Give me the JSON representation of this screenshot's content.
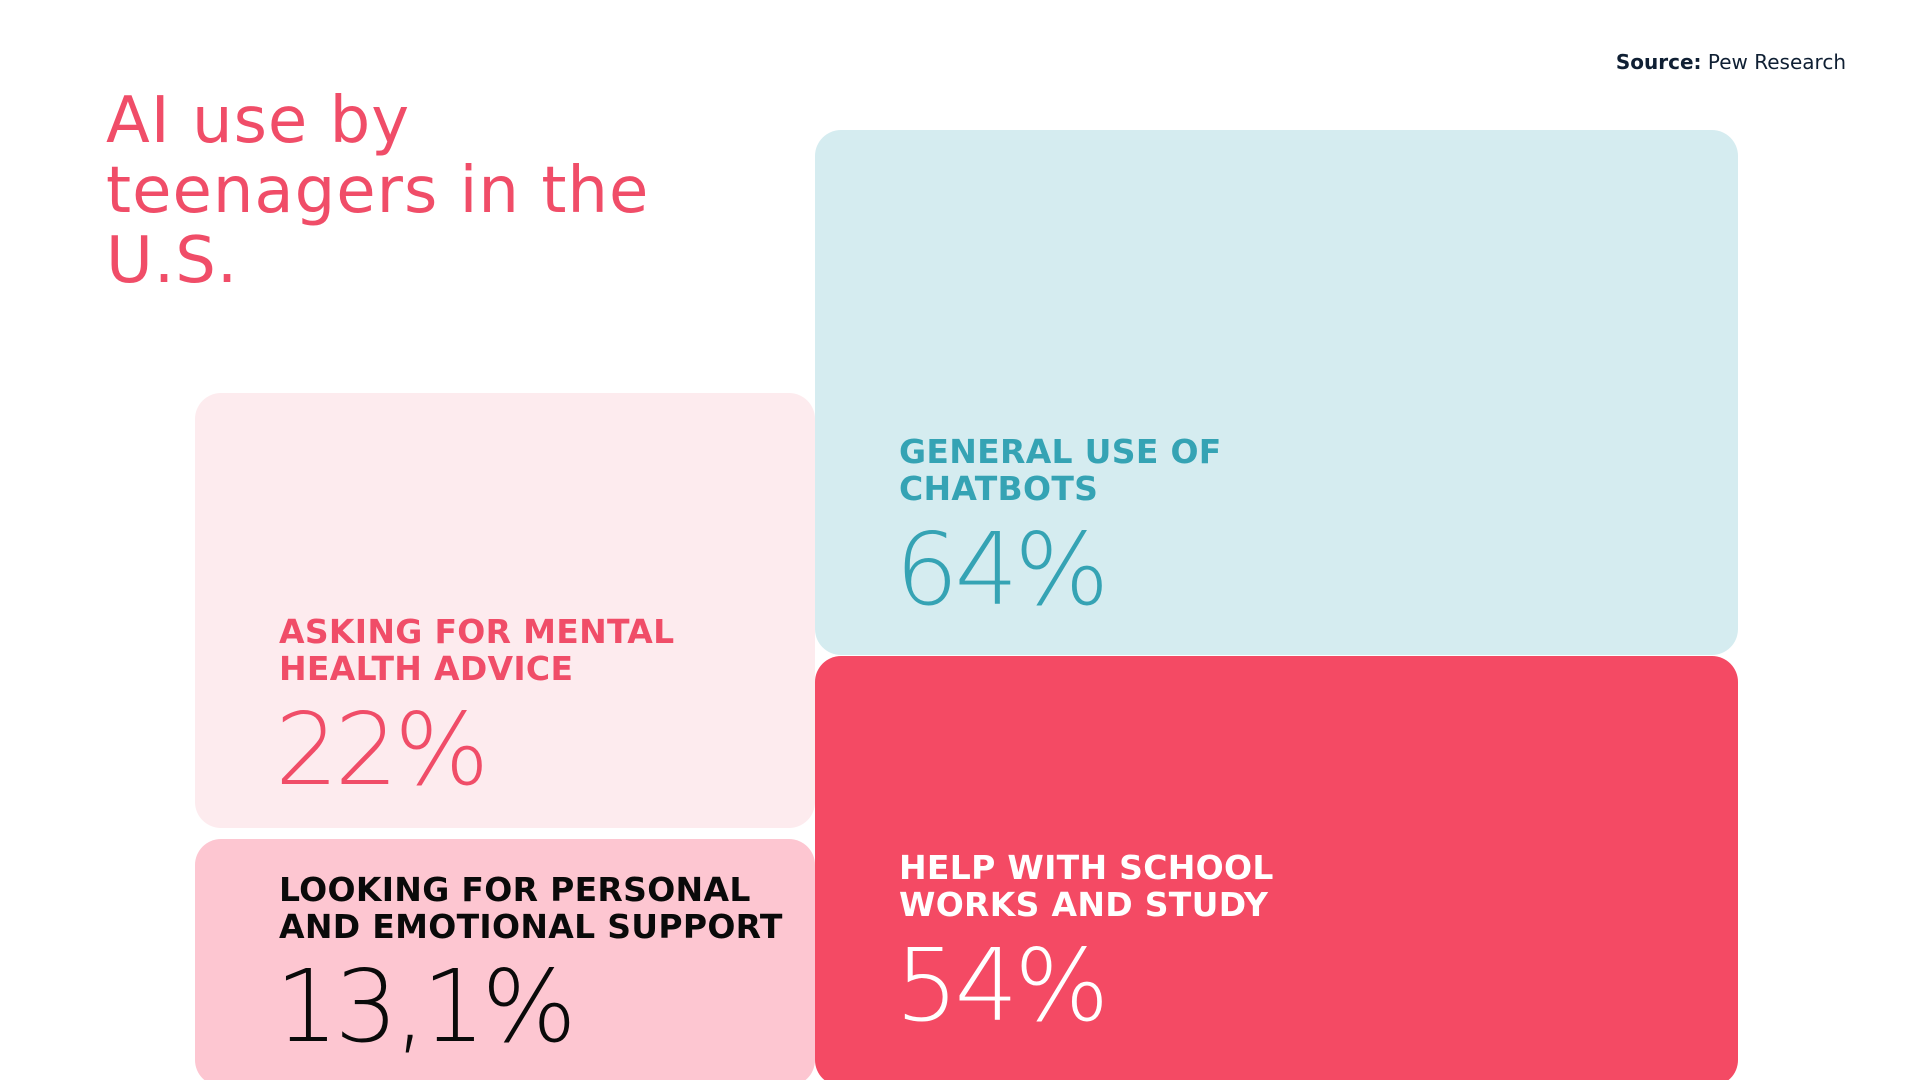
{
  "source": {
    "label": "Source:",
    "value": "Pew Research"
  },
  "title": "AI use by teenagers in the U.S.",
  "colors": {
    "title": "#f04d68",
    "chatbots_bg": "#d5ecf0",
    "chatbots_text": "#35a3b4",
    "mental_bg": "#fdebee",
    "mental_text": "#f04d68",
    "school_bg": "#f44a64",
    "school_text": "#ffffff",
    "support_bg": "#fdc6d1",
    "support_text": "#0a0a0a"
  },
  "chart_data": {
    "type": "treemap",
    "title": "AI use by teenagers in the U.S.",
    "items": [
      {
        "label": "GENERAL USE OF CHATBOTS",
        "value": 64,
        "display": "64%"
      },
      {
        "label": "ASKING FOR MENTAL HEALTH ADVICE",
        "value": 22,
        "display": "22%"
      },
      {
        "label": "HELP WITH SCHOOL WORKS AND STUDY",
        "value": 54,
        "display": "54%"
      },
      {
        "label": "LOOKING FOR PERSONAL AND EMOTIONAL SUPPORT",
        "value": 13.1,
        "display": "13,1%"
      }
    ]
  }
}
